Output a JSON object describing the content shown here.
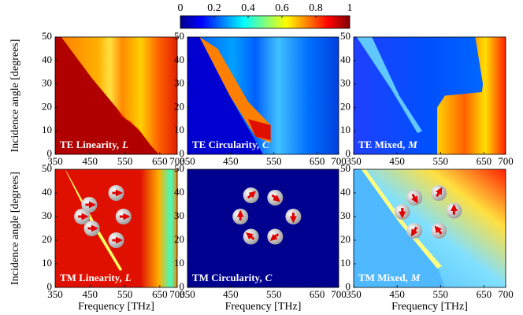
{
  "colorbar": {
    "lim": [
      0,
      1
    ],
    "ticks": [
      0,
      0.2,
      0.4,
      0.6,
      0.8,
      1
    ]
  },
  "chart_data": [
    {
      "type": "heatmap",
      "title": "TE Linearity,",
      "symbol": "L",
      "ylabel": "Incidence angle [degrees]",
      "xlim": [
        350,
        700
      ],
      "xticks": [
        350,
        450,
        550,
        650,
        700
      ],
      "ylim": [
        0,
        50
      ],
      "yticks": [
        0,
        10,
        20,
        30,
        40,
        50
      ]
    },
    {
      "type": "heatmap",
      "title": "TE Circularity,",
      "symbol": "C",
      "xlim": [
        350,
        700
      ],
      "xticks": [
        350,
        450,
        550,
        650,
        700
      ],
      "ylim": [
        0,
        50
      ],
      "yticks": [
        0,
        10,
        20,
        30,
        40,
        50
      ]
    },
    {
      "type": "heatmap",
      "title": "TE Mixed,",
      "symbol": "M",
      "xlim": [
        350,
        700
      ],
      "xticks": [
        350,
        450,
        550,
        650,
        700
      ],
      "ylim": [
        0,
        50
      ],
      "yticks": [
        0,
        10,
        20,
        30,
        40,
        50
      ]
    },
    {
      "type": "heatmap",
      "title": "TM Linearity,",
      "symbol": "L",
      "ylabel": "Incidence angle [degrees]",
      "xlabel": "Frequency [THz]",
      "xlim": [
        350,
        700
      ],
      "xticks": [
        350,
        450,
        550,
        650,
        700
      ],
      "ylim": [
        0,
        50
      ],
      "yticks": [
        0,
        10,
        20,
        30,
        40,
        50
      ]
    },
    {
      "type": "heatmap",
      "title": "TM Circularity,",
      "symbol": "C",
      "xlabel": "Frequency [THz]",
      "xlim": [
        350,
        700
      ],
      "xticks": [
        350,
        450,
        550,
        650,
        700
      ],
      "ylim": [
        0,
        50
      ],
      "yticks": [
        0,
        10,
        20,
        30,
        40,
        50
      ]
    },
    {
      "type": "heatmap",
      "title": "TM Mixed,",
      "symbol": "M",
      "xlabel": "Frequency [THz]",
      "xlim": [
        350,
        700
      ],
      "xticks": [
        350,
        450,
        550,
        650,
        700
      ],
      "ylim": [
        0,
        50
      ],
      "yticks": [
        0,
        10,
        20,
        30,
        40,
        50
      ]
    }
  ]
}
